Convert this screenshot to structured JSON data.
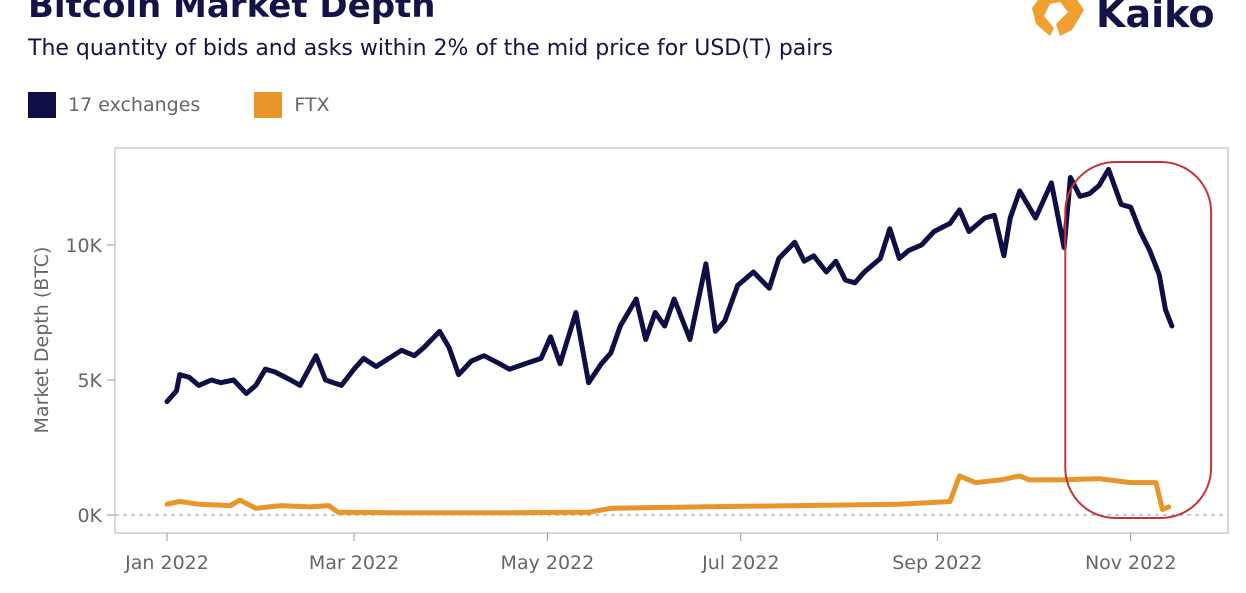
{
  "header": {
    "title": "Bitcoin Market Depth",
    "subtitle": "The quantity of bids and asks within 2% of the mid price for USD(T) pairs",
    "logo_text": "Kaiko"
  },
  "colors": {
    "exchanges": "#0f0f45",
    "ftx": "#e8962a",
    "highlight": "#c8343a"
  },
  "chart_data": {
    "type": "line",
    "title": "Bitcoin Market Depth",
    "xlabel": "",
    "ylabel": "Market Depth (BTC)",
    "x_unit": "days since 2022-01-01",
    "xlim": [
      -15,
      335
    ],
    "ylim": [
      -0.7,
      13.5
    ],
    "y_unit": "thousand BTC",
    "grid": false,
    "legend_position": "top-left",
    "x_ticks": [
      {
        "value": 0,
        "label": "Jan 2022"
      },
      {
        "value": 59,
        "label": "Mar 2022"
      },
      {
        "value": 120,
        "label": "May 2022"
      },
      {
        "value": 181,
        "label": "Jul 2022"
      },
      {
        "value": 243,
        "label": "Sep 2022"
      },
      {
        "value": 304,
        "label": "Nov 2022"
      }
    ],
    "y_ticks": [
      {
        "value": 0,
        "label": "0K"
      },
      {
        "value": 5,
        "label": "5K"
      },
      {
        "value": 10,
        "label": "10K"
      }
    ],
    "series": [
      {
        "name": "17 exchanges",
        "x": [
          0,
          3,
          4,
          7,
          10,
          14,
          17,
          21,
          25,
          28,
          31,
          34,
          39,
          42,
          47,
          50,
          55,
          59,
          62,
          66,
          70,
          74,
          78,
          81,
          86,
          89,
          92,
          96,
          100,
          105,
          108,
          113,
          118,
          121,
          124,
          129,
          133,
          137,
          140,
          143,
          148,
          151,
          154,
          157,
          160,
          165,
          170,
          173,
          176,
          180,
          185,
          190,
          193,
          198,
          201,
          204,
          208,
          211,
          214,
          217,
          220,
          225,
          228,
          231,
          234,
          238,
          242,
          247,
          250,
          253,
          258,
          261,
          264,
          266,
          269,
          274,
          279,
          283,
          285,
          288,
          291,
          294,
          297,
          301,
          304,
          307,
          310,
          313,
          315,
          317
        ],
        "y": [
          4.2,
          4.6,
          5.2,
          5.1,
          4.8,
          5.0,
          4.9,
          5.0,
          4.5,
          4.8,
          5.4,
          5.3,
          5.0,
          4.8,
          5.9,
          5.0,
          4.8,
          5.4,
          5.8,
          5.5,
          5.8,
          6.1,
          5.9,
          6.2,
          6.8,
          6.2,
          5.2,
          5.7,
          5.9,
          5.6,
          5.4,
          5.6,
          5.8,
          6.6,
          5.6,
          7.5,
          4.9,
          5.6,
          6.0,
          7.0,
          8.0,
          6.5,
          7.5,
          7.0,
          8.0,
          6.5,
          9.3,
          6.8,
          7.2,
          8.5,
          9.0,
          8.4,
          9.5,
          10.1,
          9.4,
          9.6,
          9.0,
          9.4,
          8.7,
          8.6,
          9.0,
          9.5,
          10.6,
          9.5,
          9.8,
          10.0,
          10.5,
          10.8,
          11.3,
          10.5,
          11.0,
          11.1,
          9.6,
          11.0,
          12.0,
          11.0,
          12.3,
          9.9,
          12.5,
          11.8,
          11.9,
          12.2,
          12.8,
          11.5,
          11.4,
          10.5,
          9.8,
          8.9,
          7.6,
          7.0
        ]
      },
      {
        "name": "FTX",
        "x": [
          0,
          4,
          10,
          20,
          23,
          28,
          36,
          45,
          51,
          54,
          74,
          105,
          133,
          140,
          168,
          199,
          231,
          247,
          250,
          255,
          263,
          269,
          272,
          282,
          294,
          304,
          312,
          314,
          316
        ],
        "y": [
          0.4,
          0.5,
          0.4,
          0.35,
          0.55,
          0.25,
          0.35,
          0.3,
          0.35,
          0.1,
          0.08,
          0.08,
          0.1,
          0.25,
          0.3,
          0.35,
          0.4,
          0.5,
          1.45,
          1.2,
          1.3,
          1.45,
          1.3,
          1.3,
          1.35,
          1.2,
          1.2,
          0.2,
          0.3
        ]
      }
    ],
    "annotations": [
      {
        "type": "rounded-rect highlight",
        "x_range": [
          284,
          330
        ],
        "y_range": [
          0,
          13
        ]
      }
    ]
  }
}
